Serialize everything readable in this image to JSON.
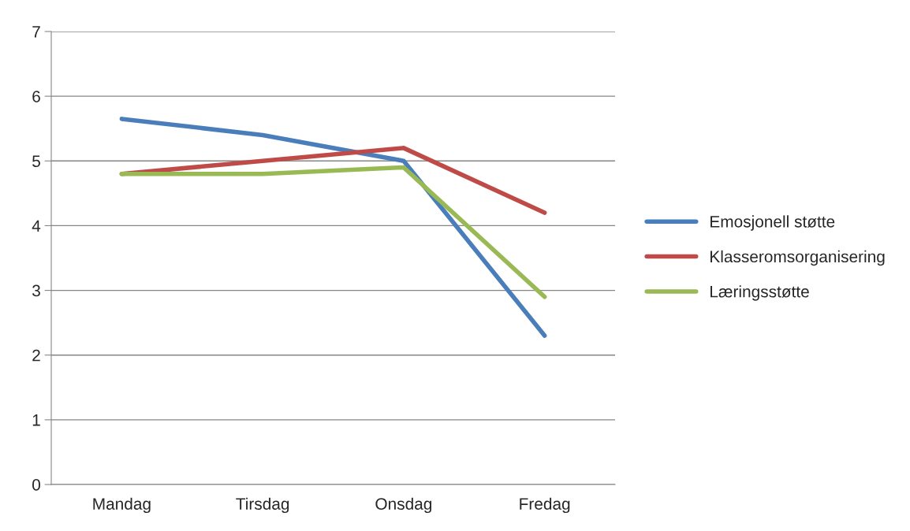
{
  "chart_data": {
    "type": "line",
    "categories": [
      "Mandag",
      "Tirsdag",
      "Onsdag",
      "Fredag"
    ],
    "series": [
      {
        "name": "Emosjonell støtte",
        "color": "#4a7ebb",
        "values": [
          5.65,
          5.4,
          5.0,
          2.3
        ]
      },
      {
        "name": "Klasseromsorganisering",
        "color": "#be4b48",
        "values": [
          4.8,
          5.0,
          5.2,
          4.2
        ]
      },
      {
        "name": "Læringsstøtte",
        "color": "#98b954",
        "values": [
          4.8,
          4.8,
          4.9,
          2.9
        ]
      }
    ],
    "ylim": [
      0,
      7
    ],
    "yticks": [
      0,
      1,
      2,
      3,
      4,
      5,
      6,
      7
    ],
    "grid": "y",
    "legend": "right",
    "marker": "none",
    "line_style": "solid"
  }
}
